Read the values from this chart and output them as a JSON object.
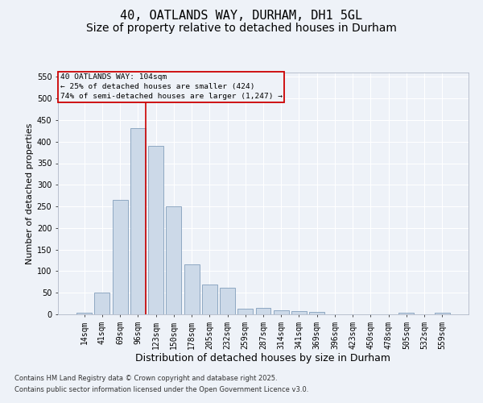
{
  "title_line1": "40, OATLANDS WAY, DURHAM, DH1 5GL",
  "title_line2": "Size of property relative to detached houses in Durham",
  "xlabel": "Distribution of detached houses by size in Durham",
  "ylabel": "Number of detached properties",
  "categories": [
    "14sqm",
    "41sqm",
    "69sqm",
    "96sqm",
    "123sqm",
    "150sqm",
    "178sqm",
    "205sqm",
    "232sqm",
    "259sqm",
    "287sqm",
    "314sqm",
    "341sqm",
    "369sqm",
    "396sqm",
    "423sqm",
    "450sqm",
    "478sqm",
    "505sqm",
    "532sqm",
    "559sqm"
  ],
  "values": [
    3,
    50,
    265,
    432,
    390,
    250,
    115,
    70,
    62,
    13,
    15,
    10,
    7,
    6,
    0,
    0,
    0,
    0,
    3,
    0,
    3
  ],
  "bar_color": "#ccd9e8",
  "bar_edge_color": "#7090b0",
  "vline_color": "#cc0000",
  "annotation_lines": [
    "40 OATLANDS WAY: 104sqm",
    "← 25% of detached houses are smaller (424)",
    "74% of semi-detached houses are larger (1,247) →"
  ],
  "annotation_box_color": "#cc0000",
  "ylim": [
    0,
    560
  ],
  "yticks": [
    0,
    50,
    100,
    150,
    200,
    250,
    300,
    350,
    400,
    450,
    500,
    550
  ],
  "footnote1": "Contains HM Land Registry data © Crown copyright and database right 2025.",
  "footnote2": "Contains public sector information licensed under the Open Government Licence v3.0.",
  "bg_color": "#eef2f8",
  "grid_color": "#ffffff",
  "title_fontsize": 11,
  "subtitle_fontsize": 10,
  "axis_label_fontsize": 8,
  "tick_fontsize": 7,
  "footnote_fontsize": 6
}
